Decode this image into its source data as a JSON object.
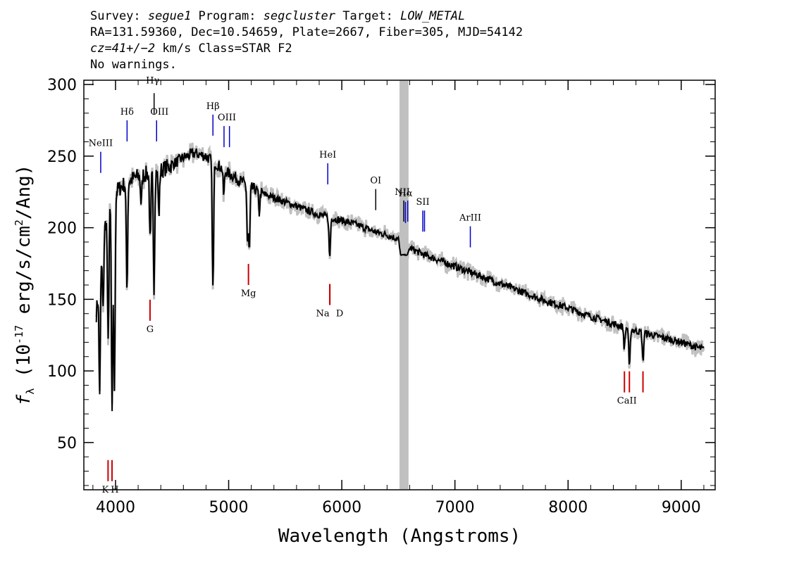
{
  "header": {
    "line1": {
      "survey_label": "Survey: ",
      "survey": "segue1",
      "program_label": " Program: ",
      "program": "segcluster",
      "target_label": " Target: ",
      "target": "LOW_METAL"
    },
    "line2": "RA=131.59360, Dec=10.54659, Plate=2667, Fiber=305, MJD=54142",
    "line3": {
      "cz": "cz=41+/−2",
      "rest": " km/s Class=STAR F2"
    },
    "line4": "No warnings."
  },
  "chart_data": {
    "type": "line",
    "xlabel": "Wavelength (Angstroms)",
    "ylabel": "f_λ (10^-17 erg/s/cm^2/Ang)",
    "xlim": [
      3720,
      9300
    ],
    "ylim": [
      17,
      303
    ],
    "x_ticks": [
      4000,
      5000,
      6000,
      7000,
      8000,
      9000
    ],
    "y_ticks": [
      50,
      100,
      150,
      200,
      250,
      300
    ],
    "masked_region": [
      6510,
      6590
    ],
    "colors": {
      "flux": "#000000",
      "error": "#c0c0c0",
      "emission": "#0000cc",
      "absorption": "#cc0000",
      "mask": "#c0c0c0"
    },
    "continuum": [
      [
        3830,
        140
      ],
      [
        3900,
        200
      ],
      [
        4000,
        225
      ],
      [
        4100,
        232
      ],
      [
        4200,
        236
      ],
      [
        4300,
        238
      ],
      [
        4400,
        240
      ],
      [
        4500,
        244
      ],
      [
        4600,
        249
      ],
      [
        4700,
        252
      ],
      [
        4800,
        250
      ],
      [
        4900,
        244
      ],
      [
        5000,
        238
      ],
      [
        5100,
        233
      ],
      [
        5200,
        228
      ],
      [
        5300,
        224
      ],
      [
        5400,
        221
      ],
      [
        5500,
        218
      ],
      [
        5600,
        215
      ],
      [
        5700,
        212
      ],
      [
        5800,
        209
      ],
      [
        5900,
        207
      ],
      [
        6000,
        205
      ],
      [
        6100,
        203
      ],
      [
        6200,
        200
      ],
      [
        6300,
        197
      ],
      [
        6400,
        195
      ],
      [
        6500,
        192
      ],
      [
        6520,
        181
      ],
      [
        6580,
        181
      ],
      [
        6600,
        186
      ],
      [
        6700,
        182
      ],
      [
        6800,
        179
      ],
      [
        7000,
        173
      ],
      [
        7200,
        167
      ],
      [
        7400,
        161
      ],
      [
        7600,
        155
      ],
      [
        7800,
        149
      ],
      [
        8000,
        144
      ],
      [
        8200,
        138
      ],
      [
        8400,
        133
      ],
      [
        8600,
        128
      ],
      [
        8800,
        124
      ],
      [
        9000,
        120
      ],
      [
        9200,
        115
      ]
    ],
    "absorption_features": [
      {
        "x": 3860,
        "depth": 80
      },
      {
        "x": 3890,
        "depth": 50
      },
      {
        "x": 3935,
        "depth": 90
      },
      {
        "x": 3970,
        "depth": 150
      },
      {
        "x": 3990,
        "depth": 140
      },
      {
        "x": 4101,
        "depth": 75
      },
      {
        "x": 4227,
        "depth": 20
      },
      {
        "x": 4307,
        "depth": 50
      },
      {
        "x": 4340,
        "depth": 80
      },
      {
        "x": 4383,
        "depth": 30
      },
      {
        "x": 4861,
        "depth": 90
      },
      {
        "x": 4957,
        "depth": 18
      },
      {
        "x": 5167,
        "depth": 40
      },
      {
        "x": 5183,
        "depth": 45
      },
      {
        "x": 5270,
        "depth": 15
      },
      {
        "x": 5893,
        "depth": 28
      },
      {
        "x": 8498,
        "depth": 15
      },
      {
        "x": 8542,
        "depth": 28
      },
      {
        "x": 8662,
        "depth": 20
      }
    ],
    "emission_lines": [
      {
        "label": "NeIII",
        "x": 3869,
        "y": 253
      },
      {
        "label": "Hδ",
        "x": 4102,
        "y": 275
      },
      {
        "label": "Hγ",
        "x": 4341,
        "y": 294
      },
      {
        "label": "OIII",
        "x": 4363,
        "y": 275
      },
      {
        "label": "Hβ",
        "x": 4861,
        "y": 279
      },
      {
        "label": "OIII",
        "x": 4959,
        "y": 271
      },
      {
        "label": "OIII",
        "x": 5007,
        "y": 271
      },
      {
        "label": "HeI",
        "x": 5876,
        "y": 245
      },
      {
        "label": "OI",
        "x": 6300,
        "y": 227
      },
      {
        "label": "NII",
        "x": 6548,
        "y": 219
      },
      {
        "label": "Hα",
        "x": 6563,
        "y": 218
      },
      {
        "label": "NII",
        "x": 6583,
        "y": 219
      },
      {
        "label": "SII",
        "x": 6716,
        "y": 212
      },
      {
        "label": "SII",
        "x": 6731,
        "y": 212
      },
      {
        "label": "ArIII",
        "x": 7136,
        "y": 201
      }
    ],
    "absorption_lines": [
      {
        "label": "K",
        "x": 3934,
        "y": 23
      },
      {
        "label": "H",
        "x": 3969,
        "y": 23
      },
      {
        "label": "G",
        "x": 4305,
        "y": 135
      },
      {
        "label": "Mg",
        "x": 5175,
        "y": 160
      },
      {
        "label": "Na",
        "x": 5894,
        "y": 146
      },
      {
        "label": "D",
        "x": 5894,
        "y": 146
      },
      {
        "label": "CaII",
        "x": 8498,
        "y": 85
      },
      {
        "label": "CaII",
        "x": 8542,
        "y": 85
      },
      {
        "label": "CaII",
        "x": 8662,
        "y": 85
      }
    ]
  }
}
